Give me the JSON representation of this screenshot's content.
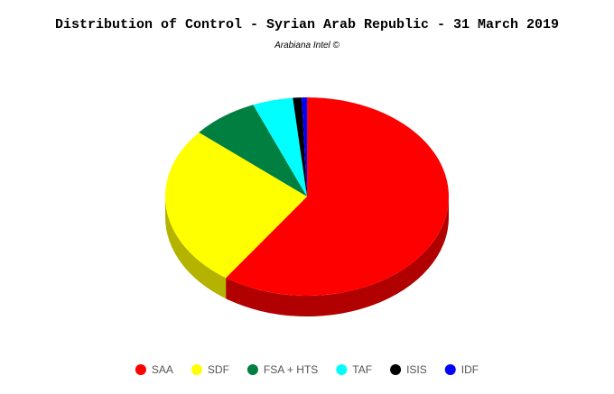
{
  "chart_data": {
    "type": "pie",
    "title": "Distribution of Control - Syrian Arab Republic - 31 March 2019",
    "subtitle": "Arabiana Intel ©",
    "categories": [
      "SAA",
      "SDF",
      "FSA + HTS",
      "TAF",
      "ISIS",
      "IDF"
    ],
    "values": [
      59.7,
      26.5,
      7.6,
      4.6,
      1.0,
      0.6
    ],
    "colors": [
      "#ff0000",
      "#ffff00",
      "#008040",
      "#00ffff",
      "#000000",
      "#0000ff"
    ],
    "side_colors": [
      "#b00000",
      "#b3b300",
      "#005a2d",
      "#00b3b3",
      "#000000",
      "#0000b3"
    ],
    "legend": "bottom"
  }
}
